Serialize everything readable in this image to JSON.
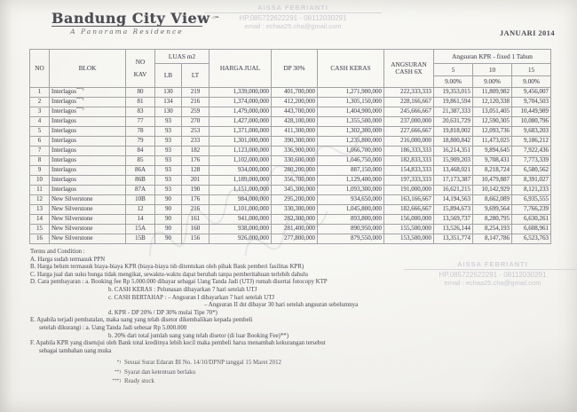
{
  "header": {
    "logo_title": "Bandung City View",
    "logo_subtitle": "A Panorama Residence",
    "period": "JANUARI 2014"
  },
  "contact_stamp": {
    "name": "AISSA FEBRIANTI",
    "phone": "HP.085722622291 - 08112030291",
    "email": "email : echaa25.cha@gmail.com"
  },
  "colors": {
    "paper": "#f5f4f0",
    "ink": "#55555c",
    "stamp": "#c3c2cb",
    "border": "#a3a2a4"
  },
  "table": {
    "headers": {
      "no": "NO",
      "blok": "BLOK",
      "kav_line1": "NO",
      "kav_line2": "KAV",
      "luas": "LUAS m2",
      "lb": "LB",
      "lt": "LT",
      "harga": "HARGA JUAL",
      "dp": "DP 30%",
      "cash": "CASH KERAS",
      "angsuran": "ANGSURAN CASH 6X",
      "kpr_group": "Angsuran KPR - fixed 1 Tahun",
      "kpr_years": [
        "5",
        "10",
        "15"
      ],
      "kpr_rates": [
        "9.00%",
        "9.00%",
        "9.00%"
      ]
    },
    "rows": [
      {
        "no": "1",
        "blok": "Interlagos",
        "note": "***)",
        "kav": "80",
        "lb": "130",
        "lt": "219",
        "harga": "1,339,000,000",
        "dp": "401,700,000",
        "cash_keras": "1,271,900,000",
        "angsuran_6x": "222,333,333",
        "kpr_5": "19,353,015",
        "kpr_10": "11,809,982",
        "kpr_15": "9,456,007"
      },
      {
        "no": "2",
        "blok": "Interlagos",
        "note": "***)",
        "kav": "81",
        "lb": "134",
        "lt": "216",
        "harga": "1,374,000,000",
        "dp": "412,200,000",
        "cash_keras": "1,305,150,000",
        "angsuran_6x": "228,166,667",
        "kpr_5": "19,861,594",
        "kpr_10": "12,120,338",
        "kpr_15": "9,704,503"
      },
      {
        "no": "3",
        "blok": "Interlagos",
        "note": "***)",
        "kav": "83",
        "lb": "130",
        "lt": "259",
        "harga": "1,479,000,000",
        "dp": "443,700,000",
        "cash_keras": "1,404,900,000",
        "angsuran_6x": "245,666,667",
        "kpr_5": "21,387,333",
        "kpr_10": "13,051,405",
        "kpr_15": "10,449,989"
      },
      {
        "no": "4",
        "blok": "Interlagos",
        "note": "",
        "kav": "77",
        "lb": "93",
        "lt": "270",
        "harga": "1,427,000,000",
        "dp": "428,100,000",
        "cash_keras": "1,355,500,000",
        "angsuran_6x": "237,000,000",
        "kpr_5": "20,631,729",
        "kpr_10": "12,590,305",
        "kpr_15": "10,080,796"
      },
      {
        "no": "5",
        "blok": "Interlagos",
        "note": "",
        "kav": "78",
        "lb": "93",
        "lt": "253",
        "harga": "1,371,000,000",
        "dp": "411,300,000",
        "cash_keras": "1,302,300,000",
        "angsuran_6x": "227,666,667",
        "kpr_5": "19,818,002",
        "kpr_10": "12,093,736",
        "kpr_15": "9,683,203"
      },
      {
        "no": "6",
        "blok": "Interlagos",
        "note": "",
        "kav": "79",
        "lb": "93",
        "lt": "233",
        "harga": "1,301,000,000",
        "dp": "390,300,000",
        "cash_keras": "1,235,800,000",
        "angsuran_6x": "216,000,000",
        "kpr_5": "18,800,842",
        "kpr_10": "11,473,025",
        "kpr_15": "9,186,212"
      },
      {
        "no": "7",
        "blok": "Interlagos",
        "note": "",
        "kav": "84",
        "lb": "93",
        "lt": "182",
        "harga": "1,123,000,000",
        "dp": "336,900,000",
        "cash_keras": "1,066,700,000",
        "angsuran_6x": "186,333,333",
        "kpr_5": "16,214,351",
        "kpr_10": "9,894,645",
        "kpr_15": "7,922,436"
      },
      {
        "no": "8",
        "blok": "Interlagos",
        "note": "",
        "kav": "85",
        "lb": "93",
        "lt": "176",
        "harga": "1,102,000,000",
        "dp": "330,600,000",
        "cash_keras": "1,046,750,000",
        "angsuran_6x": "182,833,333",
        "kpr_5": "15,909,203",
        "kpr_10": "9,708,431",
        "kpr_15": "7,773,339"
      },
      {
        "no": "9",
        "blok": "Interlagos",
        "note": "",
        "kav": "86A",
        "lb": "93",
        "lt": "128",
        "harga": "934,000,000",
        "dp": "280,200,000",
        "cash_keras": "887,150,000",
        "angsuran_6x": "154,833,333",
        "kpr_5": "13,468,021",
        "kpr_10": "8,218,724",
        "kpr_15": "6,580,562"
      },
      {
        "no": "10",
        "blok": "Interlagos",
        "note": "",
        "kav": "86B",
        "lb": "93",
        "lt": "201",
        "harga": "1,189,000,000",
        "dp": "356,700,000",
        "cash_keras": "1,129,400,000",
        "angsuran_6x": "197,333,333",
        "kpr_5": "17,173,387",
        "kpr_10": "10,479,887",
        "kpr_15": "8,391,027"
      },
      {
        "no": "11",
        "blok": "Interlagos",
        "note": "",
        "kav": "87A",
        "lb": "93",
        "lt": "190",
        "harga": "1,151,000,000",
        "dp": "345,300,000",
        "cash_keras": "1,093,300,000",
        "angsuran_6x": "191,000,000",
        "kpr_5": "16,621,215",
        "kpr_10": "10,142,929",
        "kpr_15": "8,121,233"
      },
      {
        "no": "12",
        "blok": "New Silverstone",
        "note": "",
        "kav": "10B",
        "lb": "90",
        "lt": "176",
        "harga": "984,000,000",
        "dp": "295,200,000",
        "cash_keras": "934,650,000",
        "angsuran_6x": "163,166,667",
        "kpr_5": "14,194,563",
        "kpr_10": "8,662,089",
        "kpr_15": "6,935,555"
      },
      {
        "no": "13",
        "blok": "New Silverstone",
        "note": "",
        "kav": "12",
        "lb": "90",
        "lt": "216",
        "harga": "1,101,000,000",
        "dp": "330,300,000",
        "cash_keras": "1,045,800,000",
        "angsuran_6x": "182,666,667",
        "kpr_5": "15,894,673",
        "kpr_10": "9,699,564",
        "kpr_15": "7,766,239"
      },
      {
        "no": "14",
        "blok": "New Silverstone",
        "note": "",
        "kav": "14",
        "lb": "90",
        "lt": "161",
        "harga": "941,000,000",
        "dp": "282,300,000",
        "cash_keras": "893,800,000",
        "angsuran_6x": "156,000,000",
        "kpr_5": "13,569,737",
        "kpr_10": "8,280,795",
        "kpr_15": "6,630,261"
      },
      {
        "no": "15",
        "blok": "New Silverstone",
        "note": "",
        "kav": "15A",
        "lb": "90",
        "lt": "160",
        "harga": "938,000,000",
        "dp": "281,400,000",
        "cash_keras": "890,950,000",
        "angsuran_6x": "155,500,000",
        "kpr_5": "13,526,144",
        "kpr_10": "8,254,193",
        "kpr_15": "6,608,961"
      },
      {
        "no": "16",
        "blok": "New Silverstone",
        "note": "",
        "kav": "15B",
        "lb": "90",
        "lt": "156",
        "harga": "926,000,000",
        "dp": "277,800,000",
        "cash_keras": "879,550,000",
        "angsuran_6x": "153,500,000",
        "kpr_5": "13,351,774",
        "kpr_10": "8,147,786",
        "kpr_15": "6,523,763"
      }
    ]
  },
  "terms": {
    "title": "Terms and Condition :",
    "lines": [
      {
        "text": "A. Harga sudah termasuk PPN",
        "indent": 0
      },
      {
        "text": "B. Harga belum termasuk biaya-biaya KPR (biaya-biaya tsb ditentukan oleh pihak Bank pemberi fasilitas KPR)",
        "indent": 0
      },
      {
        "text": "C. Harga jual dan suku bunga tidak mengikat, sewaktu-waktu dapat berubah tanpa pemberitahuan terlebih dahulu",
        "indent": 0
      },
      {
        "text": "D. Cara pembayaran :  a. Booking fee Rp 5.000.000 dibayar sebagai Uang Tanda Jadi (UTJ) rumah disertai fotocopy KTP",
        "indent": 0
      },
      {
        "text": "b. CASH KERAS : Pelunasan dibayarkan 7 hari setelah UTJ",
        "indent": 2
      },
      {
        "text": "c. CASH BERTAHAP :  – Angsuran I dibayarkan 7 hari setelah UTJ",
        "indent": 2
      },
      {
        "text": "– Angsuran II dst dibayar 30 hari setelah angsuran sebelumnya",
        "indent": 3
      },
      {
        "text": "d. KPR - DP 20% / DP 30% mulai Tipe 70*)",
        "indent": 2
      },
      {
        "text": "E. Apabila terjadi pembatalan, maka uang yang telah disetor dikembalikan kepada pembeli",
        "indent": 0
      },
      {
        "text": "setelah dikurangi : a. Uang Tanda Jadi sebesar Rp 5.000.000",
        "indent": 1
      },
      {
        "text": "b. 20% dari total jumlah uang yang telah disetor (di luar Booking Fee)**)",
        "indent": 2
      },
      {
        "text": "F. Apabila KPR yang disetujui oleh Bank total kreditnya lebih  kecil maka pembeli harus menambah kekurangan tersebut",
        "indent": 0
      },
      {
        "text": "sebagai tambahan uang muka",
        "indent": 1
      }
    ]
  },
  "footnotes": [
    {
      "marker": "*)",
      "text": "Sesuai Surat Edaran BI No. 14/10/DPNP tanggal 15 Maret 2012"
    },
    {
      "marker": "**)",
      "text": "Syarat dan ketentuan berlaku"
    },
    {
      "marker": "***)",
      "text": "Ready stock"
    }
  ]
}
